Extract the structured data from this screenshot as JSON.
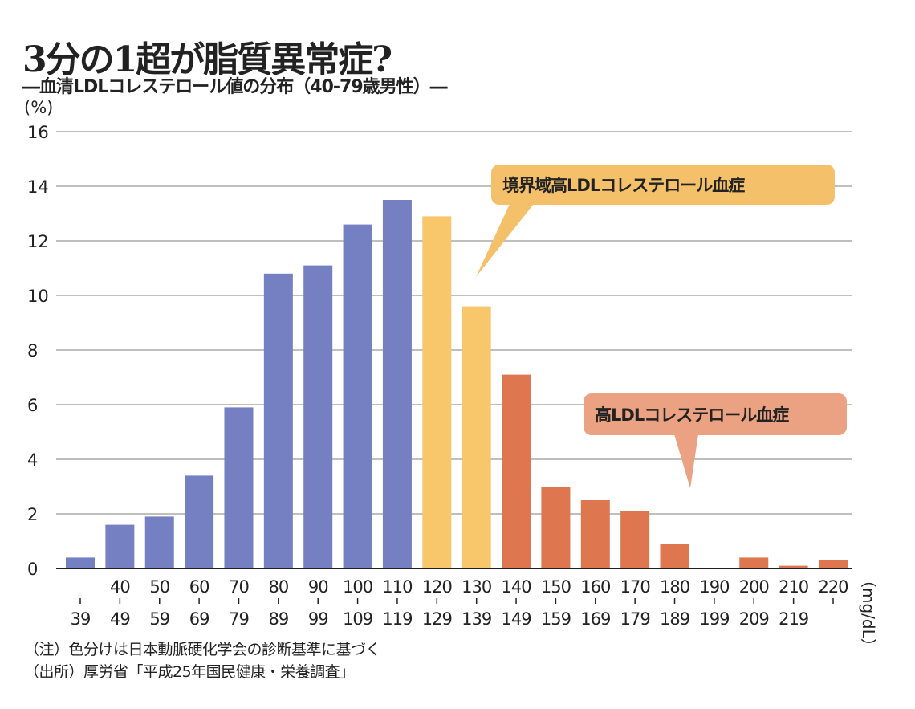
{
  "chart_data": {
    "type": "bar",
    "title": "3分の1超が脂質異常症?",
    "subtitle": "―血清LDLコレステロール値の分布（40-79歳男性）―",
    "ylabel": "(%)",
    "xlabel": "（mg/dL）",
    "ylim": [
      0,
      16
    ],
    "yticks": [
      0,
      2,
      4,
      6,
      8,
      10,
      12,
      14,
      16
    ],
    "grid": true,
    "categories_top": [
      "",
      "40",
      "50",
      "60",
      "70",
      "80",
      "90",
      "100",
      "110",
      "120",
      "130",
      "140",
      "150",
      "160",
      "170",
      "180",
      "190",
      "200",
      "210",
      "220"
    ],
    "categories_bottom": [
      "39",
      "49",
      "59",
      "69",
      "79",
      "89",
      "99",
      "109",
      "119",
      "129",
      "139",
      "149",
      "159",
      "169",
      "179",
      "189",
      "199",
      "209",
      "219",
      ""
    ],
    "values": [
      0.4,
      1.6,
      1.9,
      3.4,
      5.9,
      10.8,
      11.1,
      12.6,
      13.5,
      12.9,
      9.6,
      7.1,
      3.0,
      2.5,
      2.1,
      0.9,
      0.0,
      0.4,
      0.1,
      0.3
    ],
    "groups": [
      "normal",
      "normal",
      "normal",
      "normal",
      "normal",
      "normal",
      "normal",
      "normal",
      "normal",
      "borderline",
      "borderline",
      "high",
      "high",
      "high",
      "high",
      "high",
      "high",
      "high",
      "high",
      "high"
    ],
    "colors": {
      "normal": "#7580c2",
      "borderline": "#f8c66b",
      "high": "#de7650"
    },
    "annotations": [
      {
        "text": "境界域高LDLコレステロール血症",
        "color": "#f5c06a"
      },
      {
        "text": "高LDLコレステロール血症",
        "color": "#eaa282"
      }
    ]
  },
  "notes": [
    "（注）色分けは日本動脈硬化学会の診断基準に基づく",
    "（出所）厚労省「平成25年国民健康・栄養調査」"
  ]
}
